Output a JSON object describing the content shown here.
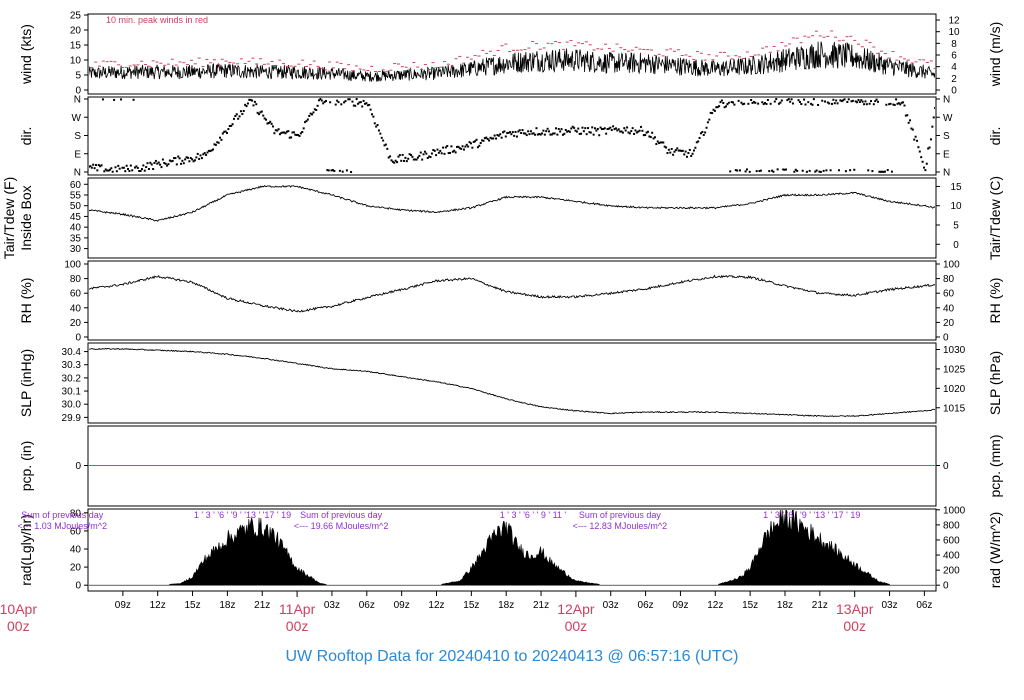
{
  "footer": {
    "prefix": "UW Rooftop Data for",
    "start": "20240410",
    "sep": "to",
    "end": "20240413 @ 06:57:16",
    "tz": "(UTC)"
  },
  "chart_data": {
    "type": "line",
    "x_time_range_hours": [
      6,
      79
    ],
    "x_minor_ticks": [
      "09z",
      "12z",
      "15z",
      "18z",
      "21z",
      "03z",
      "06z",
      "09z",
      "12z",
      "15z",
      "18z",
      "21z",
      "03z",
      "06z",
      "09z",
      "12z",
      "15z",
      "18z",
      "21z",
      "03z",
      "06z"
    ],
    "x_minor_hours": [
      9,
      12,
      15,
      18,
      21,
      27,
      30,
      33,
      36,
      39,
      42,
      45,
      51,
      54,
      57,
      60,
      63,
      66,
      69,
      75,
      78
    ],
    "x_day_labels": [
      {
        "hour": 0,
        "day": "10Apr",
        "time": "00z"
      },
      {
        "hour": 24,
        "day": "11Apr",
        "time": "00z"
      },
      {
        "hour": 48,
        "day": "12Apr",
        "time": "00z"
      },
      {
        "hour": 72,
        "day": "13Apr",
        "time": "00z"
      }
    ],
    "day_label_color": "#d04060",
    "panels": [
      {
        "id": "wind",
        "ylabel_left": "wind (kts)",
        "ylabel_right": "wind (m/s)",
        "ylim": [
          0,
          25
        ],
        "yticks_left": [
          "0",
          "5",
          "10",
          "15",
          "20",
          "25"
        ],
        "yticks_right": [
          "0",
          "2",
          "4",
          "6",
          "8",
          "10",
          "12"
        ],
        "right_lim": [
          0,
          12.86
        ],
        "annotation": "10 min. peak winds in red",
        "annotation_color": "#d04060",
        "series": [
          {
            "role": "mean",
            "x": [
              6,
              9,
              12,
              15,
              18,
              21,
              24,
              27,
              30,
              33,
              36,
              39,
              42,
              45,
              48,
              51,
              54,
              57,
              60,
              63,
              66,
              69,
              72,
              75,
              78,
              79
            ],
            "y": [
              5.5,
              6,
              6,
              6,
              6.5,
              6,
              6,
              5.5,
              4.5,
              5,
              5.5,
              7,
              9,
              10,
              10,
              9,
              9,
              8,
              7,
              8,
              10,
              12,
              11,
              8,
              6,
              5
            ]
          },
          {
            "role": "peak",
            "color": "#d04060",
            "x": [
              6,
              9,
              12,
              15,
              18,
              21,
              24,
              27,
              30,
              33,
              36,
              39,
              42,
              45,
              48,
              51,
              54,
              57,
              60,
              63,
              66,
              69,
              72,
              75,
              78,
              79
            ],
            "y": [
              8,
              9,
              9,
              9,
              10,
              9,
              9,
              8,
              7,
              8,
              8,
              11,
              14,
              15,
              15,
              14,
              13,
              12,
              11,
              12,
              15,
              19,
              17,
              12,
              9,
              8
            ]
          }
        ]
      },
      {
        "id": "dir",
        "ylabel_left": "dir.",
        "ylabel_right": "dir.",
        "ylim": [
          0,
          360
        ],
        "yticks_left": [
          "N",
          "E",
          "S",
          "W",
          "N"
        ],
        "yticks_right": [
          "N",
          "E",
          "S",
          "W",
          "N"
        ],
        "ytick_values": [
          0,
          90,
          180,
          270,
          360
        ],
        "series": [
          {
            "role": "direction",
            "style": "points",
            "x": [
              6,
              8,
              10,
              12,
              14,
              16,
              18,
              20,
              22,
              24,
              26,
              28,
              30,
              32,
              34,
              36,
              38,
              40,
              42,
              44,
              46,
              48,
              50,
              52,
              54,
              56,
              58,
              60,
              62,
              64,
              66,
              68,
              70,
              72,
              74,
              76,
              78,
              79
            ],
            "y": [
              20,
              10,
              15,
              40,
              60,
              80,
              220,
              350,
              200,
              180,
              355,
              350,
              340,
              60,
              70,
              100,
              120,
              150,
              190,
              200,
              200,
              205,
              200,
              210,
              200,
              100,
              90,
              330,
              355,
              350,
              355,
              350,
              350,
              355,
              350,
              350,
              15,
              355
            ]
          }
        ]
      },
      {
        "id": "temp",
        "ylabel_left": "Tair/Tdew (F)",
        "ylabel_left2": "Inside Box",
        "ylabel_right": "Tair/Tdew (C)",
        "ylim": [
          27,
          62
        ],
        "yticks_left": [
          "30",
          "35",
          "40",
          "45",
          "50",
          "55",
          "60"
        ],
        "ytick_values": [
          30,
          35,
          40,
          45,
          50,
          55,
          60
        ],
        "yticks_right": [
          "0",
          "5",
          "10",
          "15"
        ],
        "series": [
          {
            "role": "tair",
            "x": [
              6,
              9,
              12,
              15,
              18,
              21,
              24,
              27,
              30,
              33,
              36,
              39,
              42,
              45,
              48,
              51,
              54,
              57,
              60,
              63,
              66,
              69,
              72,
              75,
              78,
              79
            ],
            "y": [
              48,
              46,
              43,
              47,
              55,
              59,
              59,
              55,
              50,
              48,
              47,
              49,
              54,
              54,
              52,
              50,
              49,
              49,
              49,
              51,
              55,
              55,
              56,
              52,
              50,
              49
            ]
          }
        ]
      },
      {
        "id": "rh",
        "ylabel_left": "RH (%)",
        "ylabel_right": "RH (%)",
        "ylim": [
          0,
          100
        ],
        "yticks_left": [
          "0",
          "20",
          "40",
          "60",
          "80",
          "100"
        ],
        "ytick_values": [
          0,
          20,
          40,
          60,
          80,
          100
        ],
        "yticks_right": [
          "0",
          "20",
          "40",
          "60",
          "80",
          "100"
        ],
        "series": [
          {
            "role": "rh",
            "x": [
              6,
              9,
              12,
              15,
              18,
              21,
              24,
              27,
              30,
              33,
              36,
              39,
              42,
              45,
              48,
              51,
              54,
              57,
              60,
              63,
              66,
              69,
              72,
              75,
              78,
              79
            ],
            "y": [
              66,
              72,
              83,
              75,
              53,
              43,
              35,
              42,
              54,
              65,
              77,
              80,
              62,
              55,
              55,
              60,
              66,
              75,
              83,
              82,
              70,
              60,
              57,
              65,
              70,
              72
            ]
          }
        ]
      },
      {
        "id": "slp",
        "ylabel_left": "SLP (inHg)",
        "ylabel_right": "SLP (hPa)",
        "ylim": [
          29.88,
          30.45
        ],
        "yticks_left": [
          "29.9",
          "30.0",
          "30.1",
          "30.2",
          "30.3",
          "30.4"
        ],
        "ytick_values": [
          29.9,
          30.0,
          30.1,
          30.2,
          30.3,
          30.4
        ],
        "yticks_right": [
          "1015",
          "1020",
          "1025",
          "1030"
        ],
        "series": [
          {
            "role": "slp",
            "x": [
              6,
              9,
              12,
              15,
              18,
              21,
              24,
              27,
              30,
              33,
              36,
              39,
              42,
              45,
              48,
              51,
              54,
              57,
              60,
              63,
              66,
              69,
              72,
              75,
              78,
              79
            ],
            "y": [
              30.42,
              30.42,
              30.41,
              30.4,
              30.38,
              30.35,
              30.31,
              30.27,
              30.25,
              30.21,
              30.17,
              30.12,
              30.04,
              29.98,
              29.95,
              29.93,
              29.94,
              29.94,
              29.94,
              29.93,
              29.92,
              29.91,
              29.91,
              29.93,
              29.95,
              29.96
            ]
          }
        ]
      },
      {
        "id": "pcp",
        "ylabel_left": "pcp. (in)",
        "ylabel_right": "pcp. (mm)",
        "ylim": [
          -1,
          1
        ],
        "yticks_left": [
          "0"
        ],
        "yticks_right": [
          "0"
        ],
        "ytick_values": [
          0
        ],
        "series": [
          {
            "role": "pcp",
            "color": "#4a78c0",
            "x": [
              6,
              79
            ],
            "y": [
              0,
              0
            ]
          }
        ]
      },
      {
        "id": "rad",
        "ylabel_left": "rad(Lgly/hr)",
        "ylabel_right": "rad (W/m^2)",
        "ylim": [
          -2,
          82
        ],
        "yticks_left": [
          "0",
          "20",
          "40",
          "60",
          "80"
        ],
        "ytick_values": [
          0,
          20,
          40,
          60,
          80
        ],
        "yticks_right": [
          "0",
          "200",
          "400",
          "600",
          "800",
          "1000"
        ],
        "annotation_color": "#9030d0",
        "daily_sums": [
          {
            "hour": 0,
            "title": "Sum of previous day",
            "value": "<--- 1.03 MJoules/m^2"
          },
          {
            "hour": 24,
            "title": "Sum of previous day",
            "value": "<--- 19.66 MJoules/m^2"
          },
          {
            "hour": 48,
            "title": "Sum of previous day",
            "value": "<--- 12.83 MJoules/m^2"
          }
        ],
        "top_labels": [
          {
            "hour": 15,
            "text": "1 ' 3 ' '6 ' '9 ' '13 ' '17 ' 19"
          },
          {
            "hour": 40,
            "text": "1 ' 3 ' '6 '  '  9 ' 11  '"
          },
          {
            "hour": 64,
            "text": "1 ' 3 ' '6 ' '9 ' '13 ' '17 ' 19"
          }
        ],
        "series": [
          {
            "role": "radiation",
            "style": "filled",
            "x": [
              6,
              12,
              14,
              15,
              16,
              18,
              20,
              21,
              22,
              23,
              24,
              26,
              27,
              36,
              38,
              39,
              40,
              41,
              42,
              43,
              44,
              45,
              46,
              47,
              48,
              50,
              51,
              60,
              62,
              63,
              64,
              65,
              66,
              67,
              68,
              69,
              70,
              72,
              74,
              75,
              76
            ],
            "y": [
              0,
              0,
              2,
              10,
              30,
              55,
              70,
              68,
              60,
              40,
              20,
              2,
              0,
              0,
              5,
              20,
              40,
              60,
              70,
              45,
              35,
              40,
              25,
              15,
              5,
              1,
              0,
              0,
              8,
              20,
              50,
              70,
              80,
              75,
              65,
              55,
              45,
              25,
              5,
              1,
              0
            ]
          }
        ]
      }
    ]
  }
}
